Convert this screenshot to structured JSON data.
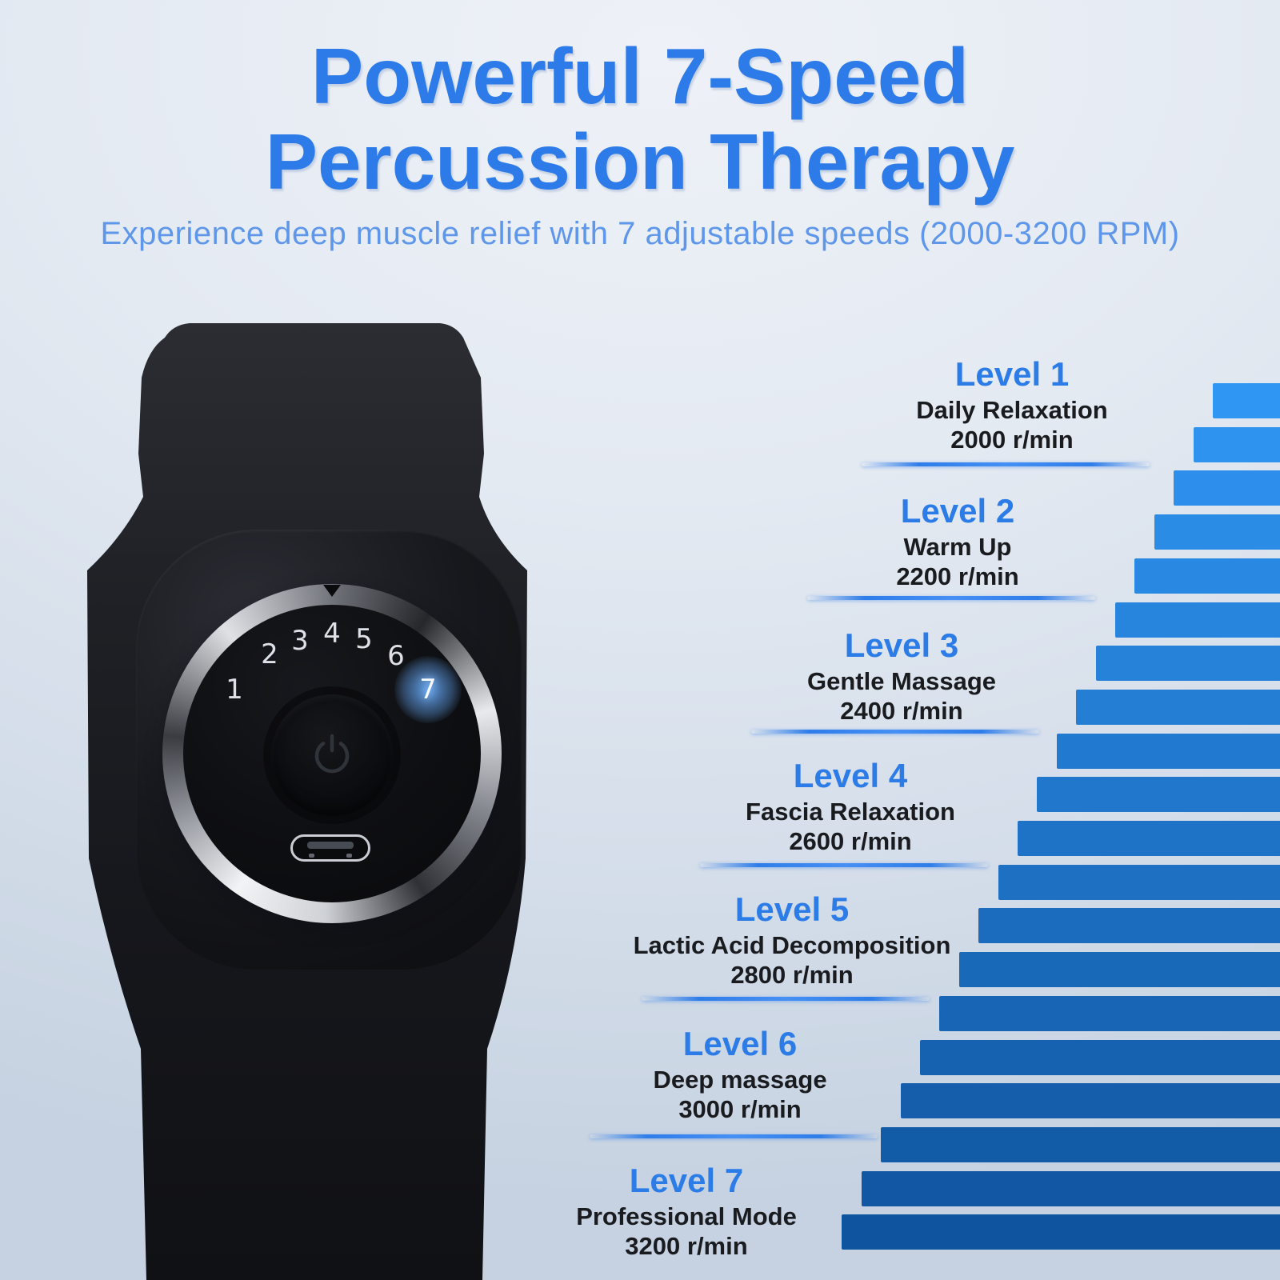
{
  "header": {
    "title_line1": "Powerful 7-Speed",
    "title_line2": "Percussion Therapy",
    "subtitle": "Experience deep muscle relief with 7 adjustable speeds (2000-3200 RPM)"
  },
  "colors": {
    "title_blue": "#2C7BE9",
    "subtitle_blue": "#5E97EA",
    "level_blue": "#2C7CE8",
    "text_dark": "#191B1F",
    "bar_top": "#3096F4",
    "bar_bottom": "#0F549E",
    "divider_blue": "#2F7DE9",
    "dial_digit": "#DDE1E7",
    "active_glow": "#64A5F2",
    "background_top": "#EEF1F7",
    "background_bottom": "#C6D2E1"
  },
  "device": {
    "dial_numbers": [
      "1",
      "2",
      "3",
      "4",
      "5",
      "6",
      "7"
    ],
    "active_number": "7",
    "icons": [
      "power-icon",
      "usb-c-port",
      "dial-pointer-icon"
    ]
  },
  "levels": [
    {
      "label": "Level 1",
      "name": "Daily Relaxation",
      "rpm": "2000 r/min"
    },
    {
      "label": "Level 2",
      "name": "Warm Up",
      "rpm": "2200 r/min"
    },
    {
      "label": "Level 3",
      "name": "Gentle Massage",
      "rpm": "2400 r/min"
    },
    {
      "label": "Level 4",
      "name": "Fascia Relaxation",
      "rpm": "2600 r/min"
    },
    {
      "label": "Level 5",
      "name": "Lactic Acid Decomposition",
      "rpm": "2800 r/min"
    },
    {
      "label": "Level 6",
      "name": "Deep massage",
      "rpm": "3000 r/min"
    },
    {
      "label": "Level 7",
      "name": "Professional Mode",
      "rpm": "3200 r/min"
    }
  ],
  "chart_data": {
    "type": "bar",
    "orientation": "horizontal-staircase",
    "title": "7 adjustable speed levels",
    "categories": [
      "Level 1",
      "Level 2",
      "Level 3",
      "Level 4",
      "Level 5",
      "Level 6",
      "Level 7"
    ],
    "values": [
      2000,
      2200,
      2400,
      2600,
      2800,
      3000,
      3200
    ],
    "unit": "r/min",
    "range": [
      2000,
      3200
    ],
    "decorative_steps": 20,
    "legend": false,
    "grid": false
  }
}
